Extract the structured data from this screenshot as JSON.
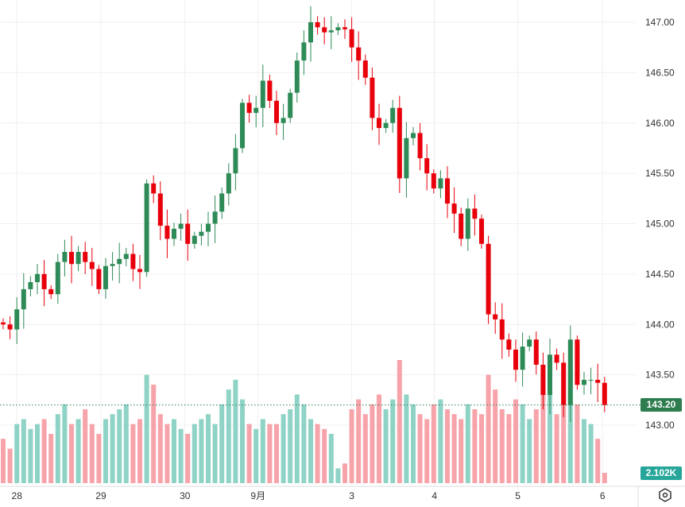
{
  "chart_data": {
    "type": "candlestick",
    "y_axis": {
      "ticks": [
        "147.00",
        "146.50",
        "146.00",
        "145.50",
        "145.00",
        "144.50",
        "144.00",
        "143.50",
        "143.00"
      ],
      "range": [
        142.45,
        147.22
      ]
    },
    "x_axis": {
      "ticks": [
        {
          "label": "28",
          "index": 2
        },
        {
          "label": "29",
          "index": 14.3
        },
        {
          "label": "30",
          "index": 26.6
        },
        {
          "label": "9月",
          "index": 37.3
        },
        {
          "label": "3",
          "index": 51
        },
        {
          "label": "4",
          "index": 63.1
        },
        {
          "label": "5",
          "index": 75.3
        },
        {
          "label": "6",
          "index": 87.7
        }
      ]
    },
    "first_open": 144.02,
    "close": [
      144.0,
      143.95,
      144.15,
      144.35,
      144.42,
      144.5,
      144.35,
      144.3,
      144.62,
      144.72,
      144.6,
      144.72,
      144.62,
      144.55,
      144.35,
      144.58,
      144.6,
      144.65,
      144.7,
      144.55,
      144.52,
      145.4,
      145.3,
      144.98,
      144.85,
      144.95,
      145.0,
      144.8,
      144.88,
      144.92,
      145.0,
      145.12,
      145.3,
      145.5,
      145.75,
      146.2,
      146.1,
      146.15,
      146.42,
      146.22,
      146.0,
      146.05,
      146.3,
      146.62,
      146.8,
      147.0,
      146.95,
      146.9,
      146.92,
      146.95,
      146.93,
      146.75,
      146.62,
      146.45,
      146.05,
      145.95,
      146.0,
      146.15,
      145.45,
      145.85,
      145.9,
      145.65,
      145.5,
      145.35,
      145.45,
      145.2,
      145.1,
      144.85,
      145.15,
      145.05,
      144.8,
      144.1,
      144.05,
      143.85,
      143.75,
      143.55,
      143.78,
      143.85,
      143.6,
      143.3,
      143.7,
      143.62,
      143.2,
      143.85,
      143.4,
      143.45,
      143.45,
      143.42,
      143.2
    ],
    "volume_k": [
      9,
      7,
      12,
      13,
      11,
      12,
      13,
      10,
      14,
      16,
      12,
      13,
      15,
      12,
      10,
      13,
      14,
      15,
      16,
      12,
      13,
      22,
      20,
      14,
      12,
      13,
      11,
      10,
      12,
      13,
      14,
      12,
      16,
      19,
      21,
      17,
      12,
      11,
      13,
      12,
      12,
      14,
      15,
      18,
      16,
      13,
      12,
      11,
      10,
      3,
      4,
      15,
      17,
      14,
      16,
      18,
      15,
      17,
      25,
      18,
      16,
      14,
      13,
      16,
      17,
      15,
      14,
      13,
      16,
      15,
      14,
      22,
      19,
      15,
      14,
      17,
      16,
      13,
      15,
      21,
      18,
      14,
      17,
      24,
      16,
      13,
      12,
      9,
      2.102
    ],
    "last_price": "143.20",
    "last_volume": "2.102K",
    "colors": {
      "up": "#2e8b57",
      "down": "#e8000b",
      "vol_up": "#8fd3c6",
      "vol_down": "#f7a3aa",
      "price_line": "#2e7d4f"
    }
  },
  "icons": {
    "settings": "settings-hexagon-icon"
  }
}
